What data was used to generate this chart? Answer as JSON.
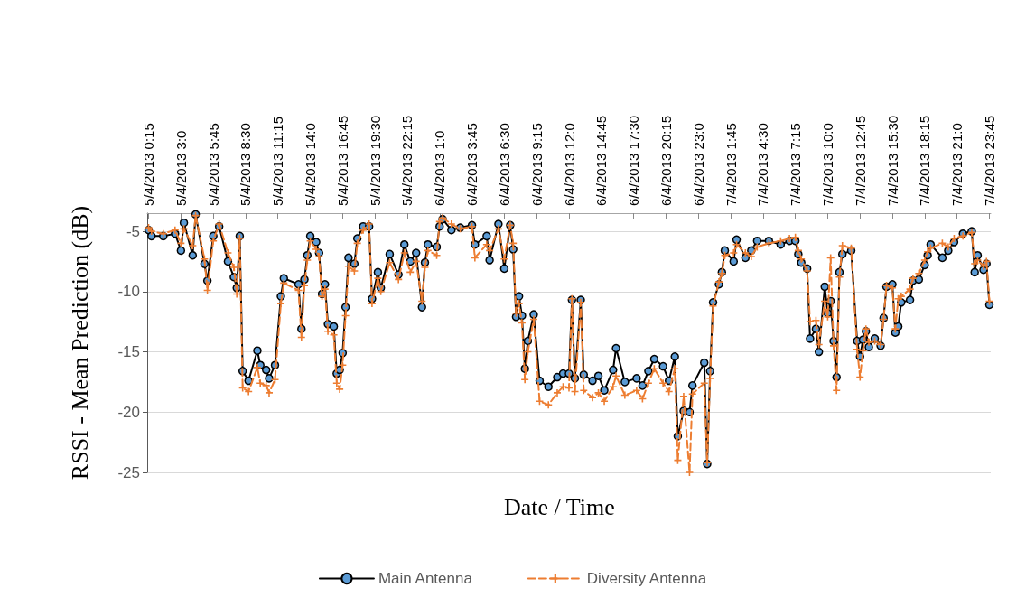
{
  "chart_data": {
    "type": "line",
    "xlabel": "Date / Time",
    "ylabel": "RSSI - Mean Prediction (dB)",
    "x": [
      "2013-04-05T00:15",
      "2013-04-05T00:30",
      "2013-04-05T01:30",
      "2013-04-05T02:30",
      "2013-04-05T03:00",
      "2013-04-05T03:15",
      "2013-04-05T04:00",
      "2013-04-05T04:15",
      "2013-04-05T05:00",
      "2013-04-05T05:15",
      "2013-04-05T05:45",
      "2013-04-05T06:15",
      "2013-04-05T07:00",
      "2013-04-05T07:30",
      "2013-04-05T07:45",
      "2013-04-05T08:00",
      "2013-04-05T08:15",
      "2013-04-05T08:45",
      "2013-04-05T09:30",
      "2013-04-05T09:45",
      "2013-04-05T10:15",
      "2013-04-05T10:30",
      "2013-04-05T11:00",
      "2013-04-05T11:30",
      "2013-04-05T11:45",
      "2013-04-05T13:00",
      "2013-04-05T13:15",
      "2013-04-05T13:30",
      "2013-04-05T13:45",
      "2013-04-05T14:00",
      "2013-04-05T14:30",
      "2013-04-05T14:45",
      "2013-04-05T15:00",
      "2013-04-05T15:15",
      "2013-04-05T15:30",
      "2013-04-05T16:00",
      "2013-04-05T16:15",
      "2013-04-05T16:30",
      "2013-04-05T16:45",
      "2013-04-05T17:00",
      "2013-04-05T17:15",
      "2013-04-05T17:45",
      "2013-04-05T18:00",
      "2013-04-05T18:30",
      "2013-04-05T19:00",
      "2013-04-05T19:15",
      "2013-04-05T19:45",
      "2013-04-05T20:00",
      "2013-04-05T20:45",
      "2013-04-05T21:30",
      "2013-04-05T22:00",
      "2013-04-05T22:30",
      "2013-04-05T23:00",
      "2013-04-05T23:30",
      "2013-04-05T23:45",
      "2013-04-06T00:00",
      "2013-04-06T00:45",
      "2013-04-06T01:00",
      "2013-04-06T01:15",
      "2013-04-06T02:00",
      "2013-04-06T02:45",
      "2013-04-06T03:45",
      "2013-04-06T04:00",
      "2013-04-06T05:00",
      "2013-04-06T05:15",
      "2013-04-06T06:00",
      "2013-04-06T06:30",
      "2013-04-06T07:00",
      "2013-04-06T07:15",
      "2013-04-06T07:30",
      "2013-04-06T07:45",
      "2013-04-06T08:00",
      "2013-04-06T08:15",
      "2013-04-06T08:30",
      "2013-04-06T09:00",
      "2013-04-06T09:30",
      "2013-04-06T10:15",
      "2013-04-06T11:00",
      "2013-04-06T11:30",
      "2013-04-06T12:00",
      "2013-04-06T12:15",
      "2013-04-06T12:30",
      "2013-04-06T13:00",
      "2013-04-06T13:15",
      "2013-04-06T14:00",
      "2013-04-06T14:30",
      "2013-04-06T15:00",
      "2013-04-06T15:45",
      "2013-04-06T16:00",
      "2013-04-06T16:45",
      "2013-04-06T17:45",
      "2013-04-06T18:15",
      "2013-04-06T18:45",
      "2013-04-06T19:15",
      "2013-04-06T20:00",
      "2013-04-06T20:30",
      "2013-04-06T21:00",
      "2013-04-06T21:15",
      "2013-04-06T21:45",
      "2013-04-06T22:15",
      "2013-04-06T22:30",
      "2013-04-06T23:30",
      "2013-04-06T23:45",
      "2013-04-07T00:00",
      "2013-04-07T00:15",
      "2013-04-07T00:45",
      "2013-04-07T01:00",
      "2013-04-07T01:15",
      "2013-04-07T02:00",
      "2013-04-07T02:15",
      "2013-04-07T03:00",
      "2013-04-07T03:30",
      "2013-04-07T04:00",
      "2013-04-07T05:00",
      "2013-04-07T06:00",
      "2013-04-07T06:45",
      "2013-04-07T07:15",
      "2013-04-07T07:30",
      "2013-04-07T07:45",
      "2013-04-07T08:15",
      "2013-04-07T08:30",
      "2013-04-07T09:00",
      "2013-04-07T09:15",
      "2013-04-07T09:45",
      "2013-04-07T10:00",
      "2013-04-07T10:15",
      "2013-04-07T10:30",
      "2013-04-07T10:45",
      "2013-04-07T11:00",
      "2013-04-07T11:15",
      "2013-04-07T12:00",
      "2013-04-07T12:30",
      "2013-04-07T12:45",
      "2013-04-07T13:00",
      "2013-04-07T13:15",
      "2013-04-07T13:30",
      "2013-04-07T14:00",
      "2013-04-07T14:30",
      "2013-04-07T14:45",
      "2013-04-07T15:00",
      "2013-04-07T15:30",
      "2013-04-07T15:45",
      "2013-04-07T16:00",
      "2013-04-07T16:15",
      "2013-04-07T17:00",
      "2013-04-07T17:15",
      "2013-04-07T17:45",
      "2013-04-07T18:15",
      "2013-04-07T18:30",
      "2013-04-07T18:45",
      "2013-04-07T19:45",
      "2013-04-07T20:15",
      "2013-04-07T20:45",
      "2013-04-07T21:30",
      "2013-04-07T22:15",
      "2013-04-07T22:30",
      "2013-04-07T22:45",
      "2013-04-07T23:15",
      "2013-04-07T23:30",
      "2013-04-07T23:45"
    ],
    "series": [
      {
        "name": "Main Antenna",
        "color": "#000000",
        "marker": "circle",
        "line_style": "solid",
        "values": [
          -4.9,
          -5.4,
          -5.4,
          -5.2,
          -6.6,
          -4.3,
          -7.0,
          -3.6,
          -7.7,
          -9.1,
          -5.4,
          -4.6,
          -7.5,
          -8.8,
          -9.7,
          -5.4,
          -16.6,
          -17.4,
          -14.9,
          -16.1,
          -16.5,
          -17.2,
          -16.1,
          -10.4,
          -8.9,
          -9.4,
          -13.1,
          -9.0,
          -7.0,
          -5.4,
          -5.9,
          -6.8,
          -10.2,
          -9.4,
          -12.7,
          -12.9,
          -16.8,
          -16.5,
          -15.1,
          -11.3,
          -7.2,
          -7.7,
          -5.6,
          -4.6,
          -4.6,
          -10.6,
          -8.4,
          -9.7,
          -6.9,
          -8.6,
          -6.1,
          -7.5,
          -6.8,
          -11.3,
          -7.6,
          -6.1,
          -6.3,
          -4.6,
          -4.0,
          -4.9,
          -4.7,
          -4.5,
          -6.1,
          -5.4,
          -7.4,
          -4.4,
          -8.1,
          -4.5,
          -6.5,
          -12.1,
          -10.4,
          -12.0,
          -16.4,
          -14.1,
          -11.9,
          -17.4,
          -17.9,
          -17.1,
          -16.8,
          -16.8,
          -10.7,
          -17.2,
          -10.7,
          -16.9,
          -17.4,
          -17.0,
          -18.2,
          -16.5,
          -14.7,
          -17.5,
          -17.2,
          -17.8,
          -16.6,
          -15.6,
          -16.2,
          -17.4,
          -15.4,
          -22.0,
          -19.9,
          -20.0,
          -17.8,
          -15.9,
          -24.3,
          -16.6,
          -10.9,
          -9.4,
          -8.4,
          -6.6,
          -7.5,
          -5.7,
          -7.2,
          -6.6,
          -5.8,
          -5.8,
          -6.1,
          -5.8,
          -5.8,
          -6.9,
          -7.6,
          -8.1,
          -13.9,
          -13.1,
          -15.0,
          -9.6,
          -11.8,
          -10.8,
          -14.1,
          -17.1,
          -8.4,
          -6.9,
          -6.6,
          -14.1,
          -15.4,
          -14.0,
          -13.3,
          -14.6,
          -13.9,
          -14.5,
          -12.2,
          -9.6,
          -9.4,
          -13.4,
          -12.9,
          -10.9,
          -10.7,
          -9.1,
          -9.0,
          -7.8,
          -7.0,
          -6.1,
          -7.2,
          -6.6,
          -5.9,
          -5.2,
          -5.0,
          -8.4,
          -7.0,
          -8.2,
          -7.7,
          -11.1
        ]
      },
      {
        "name": "Diversity Antenna",
        "color": "#ed7d31",
        "marker": "cross",
        "line_style": "dashed",
        "values": [
          -4.7,
          -5.0,
          -5.2,
          -4.9,
          -6.0,
          -4.8,
          -6.2,
          -3.7,
          -7.3,
          -9.9,
          -5.8,
          -4.4,
          -6.8,
          -8.0,
          -10.2,
          -5.6,
          -18.0,
          -18.3,
          -16.3,
          -17.6,
          -17.8,
          -18.4,
          -17.3,
          -11.0,
          -9.3,
          -9.9,
          -13.8,
          -9.5,
          -7.4,
          -5.8,
          -6.5,
          -7.1,
          -10.4,
          -9.8,
          -13.3,
          -13.6,
          -17.6,
          -18.1,
          -16.1,
          -12.0,
          -7.9,
          -8.3,
          -6.0,
          -4.9,
          -4.4,
          -11.0,
          -8.9,
          -10.0,
          -7.6,
          -9.0,
          -6.8,
          -8.4,
          -7.5,
          -10.8,
          -8.0,
          -6.6,
          -7.0,
          -4.2,
          -3.9,
          -4.4,
          -4.8,
          -4.6,
          -7.2,
          -6.1,
          -6.6,
          -4.8,
          -7.3,
          -4.5,
          -6.0,
          -11.8,
          -11.0,
          -12.6,
          -17.3,
          -15.0,
          -12.3,
          -19.1,
          -19.4,
          -18.4,
          -17.9,
          -18.0,
          -10.6,
          -18.3,
          -10.9,
          -18.2,
          -18.8,
          -18.4,
          -19.1,
          -17.9,
          -17.0,
          -18.6,
          -18.2,
          -18.9,
          -17.6,
          -16.4,
          -17.6,
          -18.3,
          -16.4,
          -24.0,
          -18.7,
          -25.0,
          -18.5,
          -17.6,
          -24.2,
          -17.2,
          -11.2,
          -9.2,
          -8.5,
          -7.0,
          -6.8,
          -6.1,
          -6.8,
          -7.1,
          -6.3,
          -6.0,
          -5.8,
          -5.6,
          -5.5,
          -6.6,
          -7.3,
          -8.3,
          -12.5,
          -12.4,
          -14.4,
          -10.8,
          -12.1,
          -7.2,
          -14.5,
          -18.2,
          -8.8,
          -6.2,
          -6.4,
          -14.8,
          -17.1,
          -14.9,
          -13.1,
          -14.2,
          -14.1,
          -14.4,
          -12.3,
          -9.5,
          -9.7,
          -13.1,
          -10.6,
          -10.4,
          -9.8,
          -8.9,
          -8.5,
          -7.4,
          -6.7,
          -6.4,
          -6.0,
          -6.3,
          -5.6,
          -5.4,
          -5.1,
          -7.7,
          -7.4,
          -7.9,
          -7.5,
          -10.8
        ]
      }
    ],
    "xlim": [
      "2013-04-05T00:08",
      "2013-04-07T23:52"
    ],
    "xticks": [
      {
        "value": "2013-04-05T00:15",
        "label": "5/4/2013 0:15"
      },
      {
        "value": "2013-04-05T03:00",
        "label": "5/4/2013 3:0"
      },
      {
        "value": "2013-04-05T05:45",
        "label": "5/4/2013 5:45"
      },
      {
        "value": "2013-04-05T08:30",
        "label": "5/4/2013 8:30"
      },
      {
        "value": "2013-04-05T11:15",
        "label": "5/4/2013 11:15"
      },
      {
        "value": "2013-04-05T14:00",
        "label": "5/4/2013 14:0"
      },
      {
        "value": "2013-04-05T16:45",
        "label": "5/4/2013 16:45"
      },
      {
        "value": "2013-04-05T19:30",
        "label": "5/4/2013 19:30"
      },
      {
        "value": "2013-04-05T22:15",
        "label": "5/4/2013 22:15"
      },
      {
        "value": "2013-04-06T01:00",
        "label": "6/4/2013 1:0"
      },
      {
        "value": "2013-04-06T03:45",
        "label": "6/4/2013 3:45"
      },
      {
        "value": "2013-04-06T06:30",
        "label": "6/4/2013 6:30"
      },
      {
        "value": "2013-04-06T09:15",
        "label": "6/4/2013 9:15"
      },
      {
        "value": "2013-04-06T12:00",
        "label": "6/4/2013 12:0"
      },
      {
        "value": "2013-04-06T14:45",
        "label": "6/4/2013 14:45"
      },
      {
        "value": "2013-04-06T17:30",
        "label": "6/4/2013 17:30"
      },
      {
        "value": "2013-04-06T20:15",
        "label": "6/4/2013 20:15"
      },
      {
        "value": "2013-04-06T23:00",
        "label": "6/4/2013 23:0"
      },
      {
        "value": "2013-04-07T01:45",
        "label": "7/4/2013 1:45"
      },
      {
        "value": "2013-04-07T04:30",
        "label": "7/4/2013 4:30"
      },
      {
        "value": "2013-04-07T07:15",
        "label": "7/4/2013 7:15"
      },
      {
        "value": "2013-04-07T10:00",
        "label": "7/4/2013 10:0"
      },
      {
        "value": "2013-04-07T12:45",
        "label": "7/4/2013 12:45"
      },
      {
        "value": "2013-04-07T15:30",
        "label": "7/4/2013 15:30"
      },
      {
        "value": "2013-04-07T18:15",
        "label": "7/4/2013 18:15"
      },
      {
        "value": "2013-04-07T21:00",
        "label": "7/4/2013 21:0"
      },
      {
        "value": "2013-04-07T23:45",
        "label": "7/4/2013 23:45"
      }
    ],
    "ylim": [
      -25,
      -3.5
    ],
    "yticks": [
      -25,
      -20,
      -15,
      -10,
      -5
    ],
    "grid": "y",
    "legend": "bottom"
  }
}
